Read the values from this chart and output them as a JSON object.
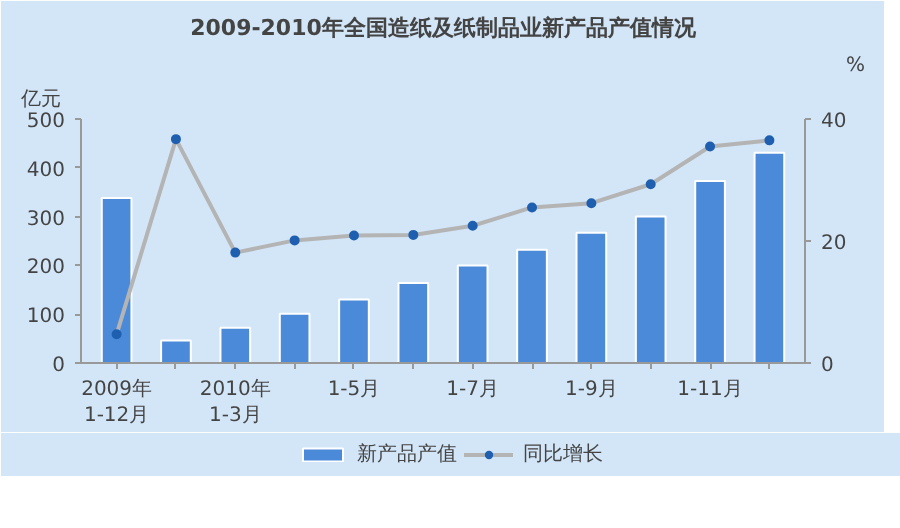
{
  "chart_data": {
    "type": "bar",
    "title": "2009-2010年全国造纸及纸制品业新产品产值情况",
    "ylabel": "亿元",
    "y2label": "%",
    "categories": [
      "2009年\n1-12月",
      null,
      "2010年\n1-3月",
      null,
      "1-5月",
      null,
      "1-7月",
      null,
      "1-9月",
      null,
      "1-11月",
      null
    ],
    "series": [
      {
        "name": "新产品产值",
        "color": "#4a8ad8",
        "values": [
          338,
          46,
          72,
          101,
          130,
          164,
          200,
          232,
          267,
          300,
          373,
          431
        ]
      },
      {
        "name": "同比增长",
        "type": "line",
        "axis": "y2",
        "color": "#b4b4b4",
        "marker": "circle",
        "values": [
          4.7,
          36.7,
          18.1,
          20.1,
          20.9,
          21,
          22.5,
          25.5,
          26.2,
          29.3,
          35.5,
          36.5
        ]
      }
    ],
    "ylim": [
      0,
      500
    ],
    "yticks": [
      0,
      100,
      200,
      300,
      400,
      500
    ],
    "y2lim": [
      0,
      40
    ],
    "y2ticks": [
      0,
      20,
      40
    ],
    "grid": false,
    "legend": "bottom"
  }
}
